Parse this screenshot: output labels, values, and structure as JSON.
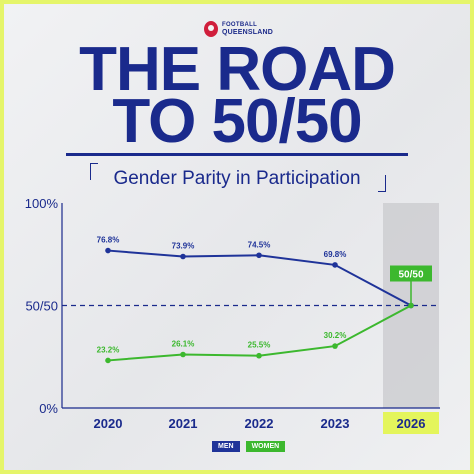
{
  "brand": {
    "line1": "FOOTBALL",
    "line2": "QUEENSLAND"
  },
  "headline": {
    "line1": "THE ROAD",
    "line2": "TO 50/50"
  },
  "colors": {
    "men": "#1f3399",
    "women": "#3cb82e",
    "navy": "#1a2a8c",
    "highlight": "#e4f55c"
  },
  "chart_data": {
    "type": "line",
    "title": "Gender Parity in Participation",
    "categories": [
      "2020",
      "2021",
      "2022",
      "2023",
      "2026"
    ],
    "highlight_category": "2026",
    "ylim": [
      0,
      100
    ],
    "y_ticks": [
      "0%",
      "50/50",
      "100%"
    ],
    "series": [
      {
        "name": "MEN",
        "values": [
          76.8,
          73.9,
          74.5,
          69.8,
          50
        ],
        "labels": [
          "76.8%",
          "73.9%",
          "74.5%",
          "69.8%",
          ""
        ]
      },
      {
        "name": "WOMEN",
        "values": [
          23.2,
          26.1,
          25.5,
          30.2,
          50
        ],
        "labels": [
          "23.2%",
          "26.1%",
          "25.5%",
          "30.2%",
          ""
        ]
      }
    ],
    "target_label": "50/50",
    "legend_position": "bottom"
  }
}
